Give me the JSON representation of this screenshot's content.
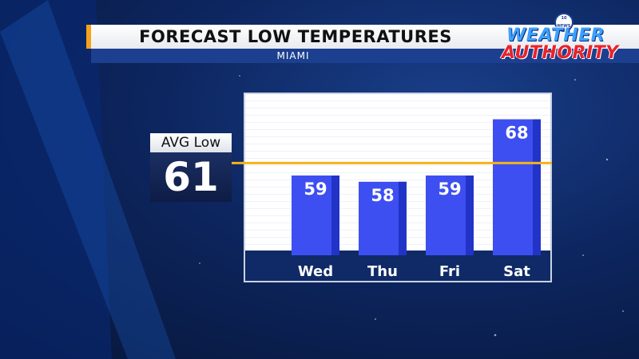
{
  "header": {
    "title": "FORECAST LOW TEMPERATURES",
    "subtitle": "MIAMI"
  },
  "logo": {
    "badge": "10 NEWS",
    "line1": "WEATHER",
    "line2": "AUTHORITY"
  },
  "average": {
    "label": "AVG Low",
    "value": "61"
  },
  "colors": {
    "bar": "#3d4ff0",
    "bar_dark": "#2233c8",
    "avg_line": "#f4b21a",
    "floor": "#0f2a66"
  },
  "chart_data": {
    "type": "bar",
    "title": "FORECAST LOW TEMPERATURES",
    "subtitle": "MIAMI",
    "categories": [
      "Wed",
      "Thu",
      "Fri",
      "Sat"
    ],
    "values": [
      59,
      58,
      59,
      68
    ],
    "average": 61,
    "ylim": [
      47,
      71
    ],
    "grid": true
  }
}
